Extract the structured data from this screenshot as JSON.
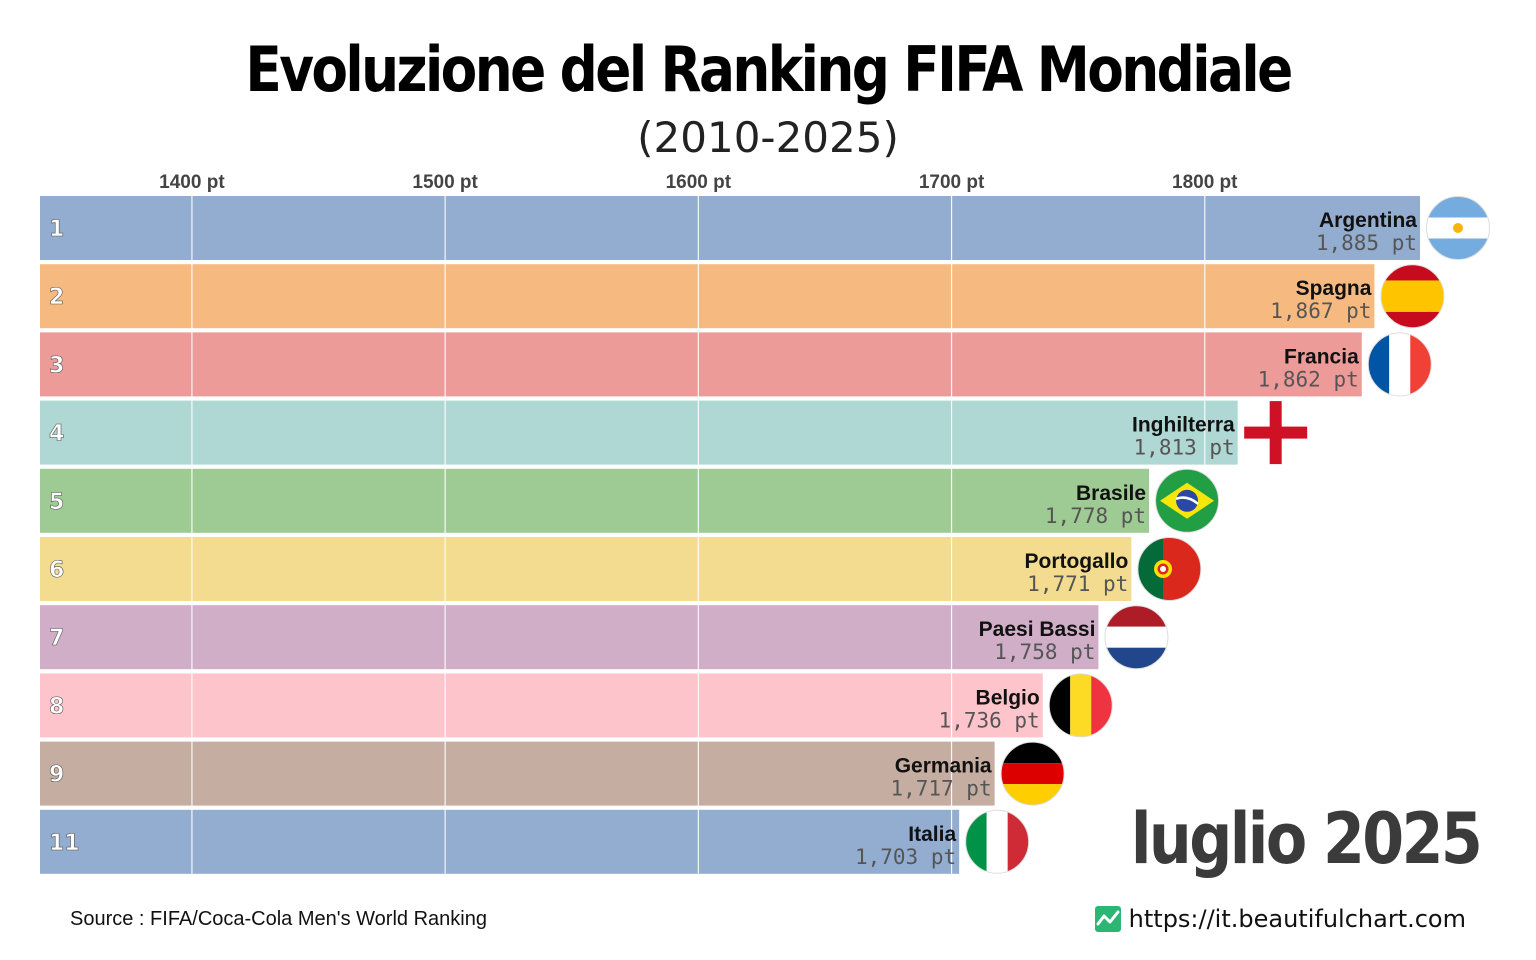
{
  "header": {
    "title": "Evoluzione del Ranking FIFA Mondiale",
    "subtitle": "(2010-2025)"
  },
  "footer": {
    "period": "luglio 2025",
    "source": "Source : FIFA/Coca-Cola Men's World Ranking",
    "website": "https://it.beautifulchart.com",
    "website_icon": "chart-line-icon"
  },
  "chart_data": {
    "type": "bar",
    "orientation": "horizontal",
    "title": "Evoluzione del Ranking FIFA Mondiale",
    "subtitle": "(2010-2025)",
    "period": "luglio 2025",
    "unit": "pt",
    "xlim": [
      1340,
      1885
    ],
    "ticks": [
      1400,
      1500,
      1600,
      1700,
      1800
    ],
    "tick_labels": [
      "1400 pt",
      "1500 pt",
      "1600 pt",
      "1700 pt",
      "1800 pt"
    ],
    "grid": true,
    "bars": [
      {
        "rank": "1",
        "name": "Argentina",
        "value": 1885,
        "value_label": "1,885 pt",
        "color": "#93add0",
        "flag": "argentina-flag-icon"
      },
      {
        "rank": "2",
        "name": "Spagna",
        "value": 1867,
        "value_label": "1,867 pt",
        "color": "#f6ba80",
        "flag": "spain-flag-icon"
      },
      {
        "rank": "3",
        "name": "Francia",
        "value": 1862,
        "value_label": "1,862 pt",
        "color": "#ec9b99",
        "flag": "france-flag-icon"
      },
      {
        "rank": "4",
        "name": "Inghilterra",
        "value": 1813,
        "value_label": "1,813 pt",
        "color": "#afd7d3",
        "flag": "england-flag-icon"
      },
      {
        "rank": "5",
        "name": "Brasile",
        "value": 1778,
        "value_label": "1,778 pt",
        "color": "#9ecb94",
        "flag": "brazil-flag-icon"
      },
      {
        "rank": "6",
        "name": "Portogallo",
        "value": 1771,
        "value_label": "1,771 pt",
        "color": "#f3dc8f",
        "flag": "portugal-flag-icon"
      },
      {
        "rank": "7",
        "name": "Paesi Bassi",
        "value": 1758,
        "value_label": "1,758 pt",
        "color": "#d0aec8",
        "flag": "netherlands-flag-icon"
      },
      {
        "rank": "8",
        "name": "Belgio",
        "value": 1736,
        "value_label": "1,736 pt",
        "color": "#fec4cb",
        "flag": "belgium-flag-icon"
      },
      {
        "rank": "9",
        "name": "Germania",
        "value": 1717,
        "value_label": "1,717 pt",
        "color": "#c5ada2",
        "flag": "germany-flag-icon"
      },
      {
        "rank": "11",
        "name": "Italia",
        "value": 1703,
        "value_label": "1,703 pt",
        "color": "#93add0",
        "flag": "italy-flag-icon"
      }
    ]
  }
}
